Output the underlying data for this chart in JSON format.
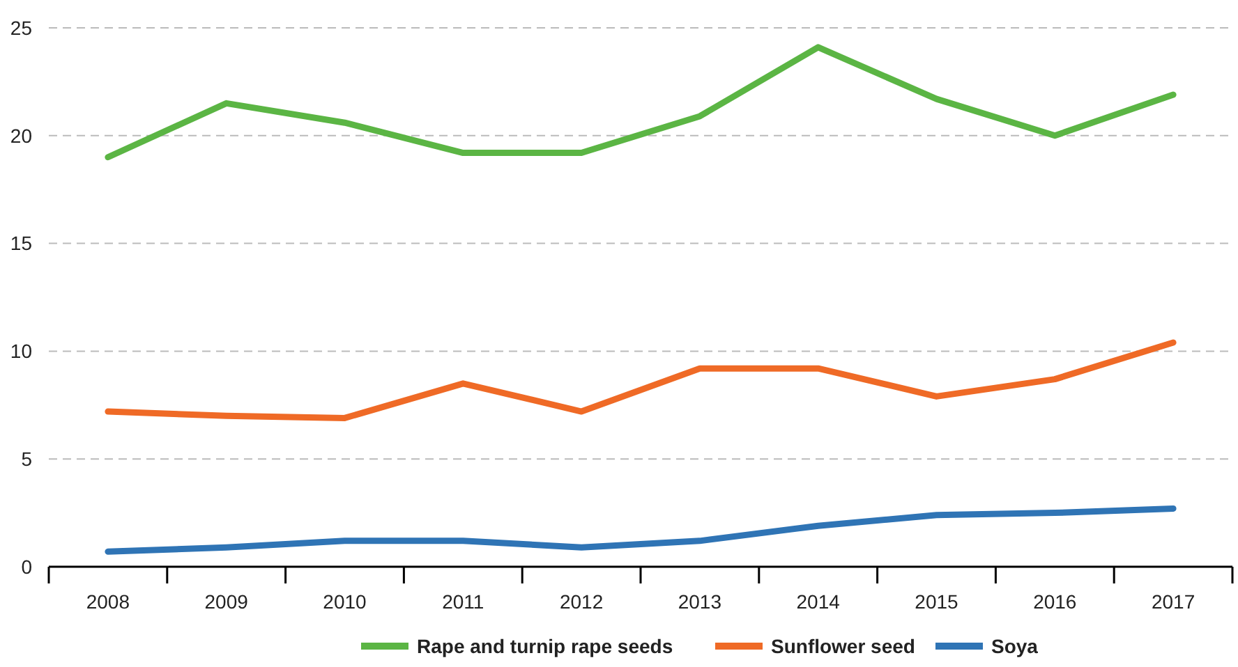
{
  "chart_data": {
    "type": "line",
    "categories": [
      "2008",
      "2009",
      "2010",
      "2011",
      "2012",
      "2013",
      "2014",
      "2015",
      "2016",
      "2017"
    ],
    "series": [
      {
        "name": "Rape and turnip rape seeds",
        "color": "#5bb544",
        "values": [
          19.0,
          21.5,
          20.6,
          19.2,
          19.2,
          20.9,
          24.1,
          21.7,
          20.0,
          21.9
        ]
      },
      {
        "name": "Sunflower seed",
        "color": "#ef6a26",
        "values": [
          7.2,
          7.0,
          6.9,
          8.5,
          7.2,
          9.2,
          9.2,
          7.9,
          8.7,
          10.4
        ]
      },
      {
        "name": "Soya",
        "color": "#2f74b5",
        "values": [
          0.7,
          0.9,
          1.2,
          1.2,
          0.9,
          1.2,
          1.9,
          2.4,
          2.5,
          2.7
        ]
      }
    ],
    "ylim": [
      0,
      25
    ],
    "yticks": [
      0,
      5,
      10,
      15,
      20,
      25
    ],
    "grid": "y",
    "legend": "bottom",
    "marker": "none",
    "line_style": "solid"
  }
}
